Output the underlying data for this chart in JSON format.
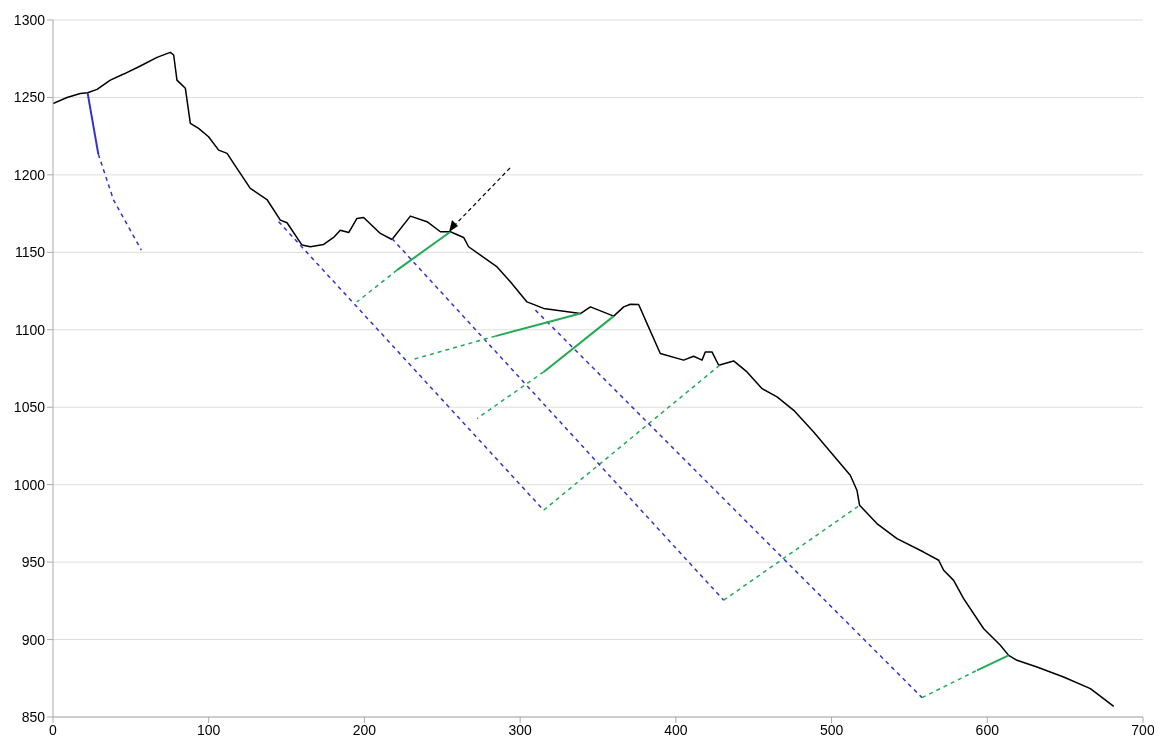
{
  "chart_data": {
    "type": "line",
    "xlim": [
      0,
      700
    ],
    "xticks": [
      0,
      100,
      200,
      300,
      400,
      500,
      600,
      700
    ],
    "ylim": [
      850,
      1300
    ],
    "yticks": [
      850,
      900,
      950,
      1000,
      1050,
      1100,
      1150,
      1200,
      1250,
      1300
    ],
    "grid": "y",
    "marker": "none",
    "series": [
      {
        "color": "#000000",
        "line_style": "solid",
        "x": [
          0,
          9,
          17.5,
          22.2,
          28.3,
          36.8,
          45.4,
          56.1,
          66.8,
          75.3,
          77.5,
          79.6,
          85,
          88.2,
          93.5,
          99.9,
          106.4,
          111.8,
          116,
          126.7,
          137.4,
          146,
          150.3,
          159.9,
          165.3,
          173.8,
          180.2,
          184.5,
          189.9,
          195.2,
          199.5,
          210.2,
          217.7,
          229.5,
          240.2,
          248.8,
          255.2,
          263.7,
          266.9,
          285.2,
          293.7,
          304.4,
          315.1,
          338.7,
          345.1,
          360.1,
          366.5,
          370.8,
          376.1,
          381.5,
          390,
          405,
          411.4,
          416.8,
          418.9,
          423.2,
          427.5,
          437.1,
          445.7,
          455.4,
          465,
          475.7,
          488.5,
          499.2,
          512,
          516.3,
          518,
          529.1,
          542,
          559.1,
          568.8,
          572,
          578.4,
          584.8,
          597.7,
          608.4,
          613.7,
          619.1,
          631.9,
          649,
          666.2,
          681.2
        ],
        "values": [
          1246,
          1250,
          1252.6,
          1253,
          1255.2,
          1261.2,
          1265.1,
          1270.3,
          1275.9,
          1279.1,
          1277.4,
          1261.2,
          1255.9,
          1233.3,
          1230,
          1224.6,
          1216,
          1213.9,
          1207.4,
          1191.3,
          1184.1,
          1170.8,
          1169.1,
          1154.7,
          1153.6,
          1155.1,
          1159.6,
          1164.3,
          1162.8,
          1171.9,
          1172.5,
          1162.2,
          1158.3,
          1173.4,
          1169.8,
          1163.3,
          1163.3,
          1159.6,
          1153.6,
          1140.6,
          1131,
          1118,
          1113.8,
          1110.5,
          1114.8,
          1108.8,
          1114.8,
          1116.5,
          1116.3,
          1104,
          1084.7,
          1080.4,
          1082.9,
          1080.4,
          1085.7,
          1085.7,
          1077.1,
          1079.9,
          1072.8,
          1062,
          1056.7,
          1048,
          1034,
          1021.2,
          1006.1,
          996.4,
          986.7,
          974.9,
          965.2,
          956.5,
          951.2,
          944.7,
          938.2,
          926.4,
          907,
          896.3,
          889.8,
          886.6,
          882.3,
          875.8,
          868.3,
          856.8
        ]
      },
      {
        "color": "#3333cc",
        "line_style": "solid",
        "x": [
          22.2,
          29.1
        ],
        "values": [
          1253,
          1213.4
        ]
      },
      {
        "color": "#3333cc",
        "line_style": "dashed",
        "x": [
          29.1,
          38.9,
          56.7
        ],
        "values": [
          1213.4,
          1183.7,
          1151.4
        ]
      },
      {
        "color": "#3333cc",
        "line_style": "dashed",
        "x": [
          144.9,
          315.1
        ],
        "values": [
          1169.8,
          983.5
        ]
      },
      {
        "color": "#22aa55",
        "line_style": "dashed",
        "x": [
          315.1,
          428
        ],
        "values": [
          983.5,
          1077
        ]
      },
      {
        "color": "#3333cc",
        "line_style": "dashed",
        "x": [
          217.7,
          430.7
        ],
        "values": [
          1158.9,
          925.4
        ]
      },
      {
        "color": "#22aa55",
        "line_style": "dashed",
        "x": [
          430.7,
          518
        ],
        "values": [
          925.4,
          986.7
        ]
      },
      {
        "color": "#3333cc",
        "line_style": "dashed",
        "x": [
          309.8,
          558.1
        ],
        "values": [
          1112.7,
          862.5
        ]
      },
      {
        "color": "#22aa55",
        "line_style": "dashed",
        "x": [
          558.1,
          593.4
        ],
        "values": [
          862.5,
          880.1
        ]
      },
      {
        "color": "#22aa55",
        "line_style": "solid",
        "x": [
          593.4,
          613.7
        ],
        "values": [
          880.1,
          889.8
        ]
      },
      {
        "color": "#22aa55",
        "line_style": "solid",
        "x": [
          255.2,
          220.9
        ],
        "values": [
          1163.3,
          1138.5
        ]
      },
      {
        "color": "#22aa55",
        "line_style": "dashed",
        "x": [
          220.9,
          195.2
        ],
        "values": [
          1138.5,
          1118
        ]
      },
      {
        "color": "#22aa55",
        "line_style": "solid",
        "x": [
          338.7,
          284.1
        ],
        "values": [
          1110.5,
          1095.9
        ]
      },
      {
        "color": "#22aa55",
        "line_style": "dashed",
        "x": [
          284.1,
          231.6
        ],
        "values": [
          1095.9,
          1081
        ]
      },
      {
        "color": "#22aa55",
        "line_style": "solid",
        "x": [
          360.1,
          315.1
        ],
        "values": [
          1108.8,
          1072.8
        ]
      },
      {
        "color": "#22aa55",
        "line_style": "dashed",
        "x": [
          315.1,
          272.3
        ],
        "values": [
          1072.8,
          1042.7
        ]
      }
    ]
  }
}
